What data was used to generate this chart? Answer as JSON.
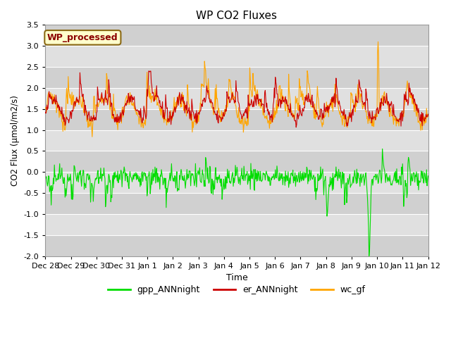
{
  "title": "WP CO2 Fluxes",
  "xlabel": "Time",
  "ylabel": "CO2 Flux (μmol/m2/s)",
  "ylim": [
    -2.0,
    3.5
  ],
  "xlim_days": [
    0,
    15
  ],
  "annotation_text": "WP_processed",
  "annotation_color": "#8B0000",
  "annotation_bg": "#FFFFCC",
  "annotation_border": "#8B6914",
  "colors": {
    "gpp_ANNnight": "#00DD00",
    "er_ANNnight": "#CC0000",
    "wc_gf": "#FFA500"
  },
  "legend_labels": [
    "gpp_ANNnight",
    "er_ANNnight",
    "wc_gf"
  ],
  "plot_bg_color": "#DCDCDC",
  "tick_labels": [
    "Dec 28",
    "Dec 29",
    "Dec 30",
    "Dec 31",
    "Jan 1",
    "Jan 2",
    "Jan 3",
    "Jan 4",
    "Jan 5",
    "Jan 6",
    "Jan 7",
    "Jan 8",
    "Jan 9",
    "Jan 10",
    "Jan 11",
    "Jan 12"
  ],
  "tick_positions": [
    0,
    1,
    2,
    3,
    4,
    5,
    6,
    7,
    8,
    9,
    10,
    11,
    12,
    13,
    14,
    15
  ],
  "n_points": 720,
  "seed": 42,
  "figsize": [
    6.4,
    4.8
  ],
  "dpi": 100
}
